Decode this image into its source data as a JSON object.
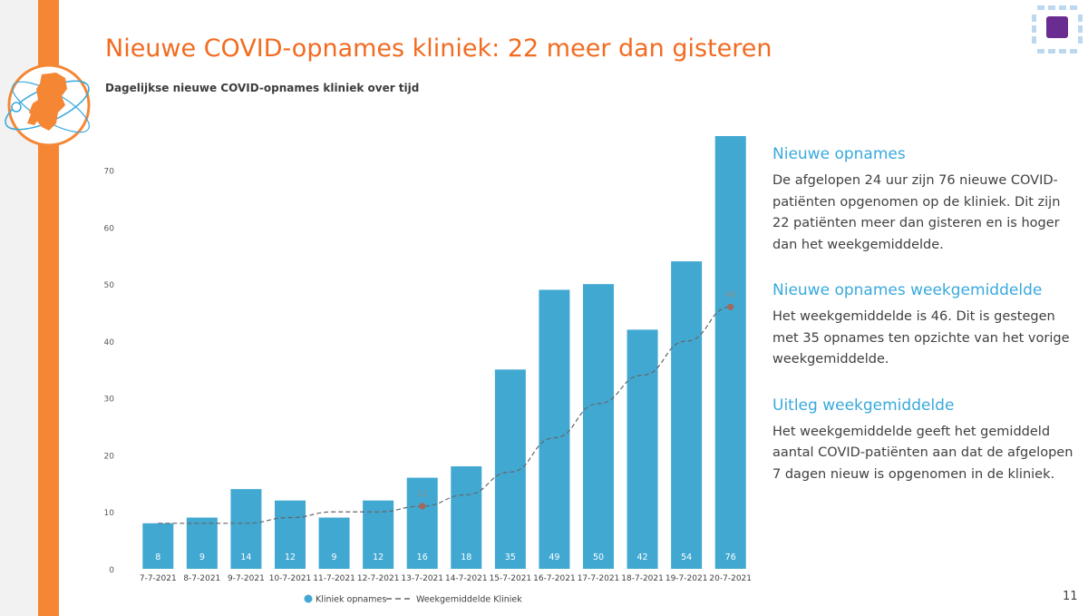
{
  "slide": {
    "title": "Nieuwe COVID-opnames kliniek: 22 meer dan gisteren",
    "subtitle": "Dagelijkse nieuwe COVID-opnames kliniek over tijd",
    "page_number": "11"
  },
  "colors": {
    "accent_orange": "#f58634",
    "title_orange": "#f26b21",
    "bar_blue": "#41a8d2",
    "heading_blue": "#39a9dc",
    "avg_line": "#666666",
    "avg_marker": "#a4695a",
    "logo_purple": "#6b2c91",
    "logo_light_blue": "#bcd8f0"
  },
  "icons": {
    "map_logo": "netherlands-map-orbit-icon",
    "corner_logo": "grid-square-logo-icon"
  },
  "sidebar": [
    {
      "heading": "Nieuwe opnames",
      "body": "De afgelopen 24 uur zijn 76 nieuwe COVID-patiënten opgenomen op de kliniek. Dit zijn 22 patiënten meer dan gisteren en is hoger dan het weekgemiddelde."
    },
    {
      "heading": "Nieuwe opnames weekgemiddelde",
      "body": "Het weekgemiddelde is 46. Dit is gestegen met 35 opnames ten opzichte van het vorige weekgemiddelde."
    },
    {
      "heading": "Uitleg weekgemiddelde",
      "body": "Het weekgemiddelde geeft het gemiddeld aantal COVID-patiënten aan dat de afgelopen 7 dagen nieuw is opgenomen in de kliniek."
    }
  ],
  "chart_data": {
    "type": "bar",
    "categories": [
      "7-7-2021",
      "8-7-2021",
      "9-7-2021",
      "10-7-2021",
      "11-7-2021",
      "12-7-2021",
      "13-7-2021",
      "14-7-2021",
      "15-7-2021",
      "16-7-2021",
      "17-7-2021",
      "18-7-2021",
      "19-7-2021",
      "20-7-2021"
    ],
    "series": [
      {
        "name": "Kliniek opnames",
        "kind": "bar",
        "values": [
          8,
          9,
          14,
          12,
          9,
          12,
          16,
          18,
          35,
          49,
          50,
          42,
          54,
          76
        ]
      },
      {
        "name": "Weekgemiddelde Kliniek",
        "kind": "dashed-line",
        "values": [
          8,
          8,
          8,
          9,
          10,
          10,
          11,
          13,
          17,
          23,
          29,
          34,
          40,
          46
        ]
      }
    ],
    "line_point_labels": [
      {
        "category": "13-7-2021",
        "value": 11
      },
      {
        "category": "20-7-2021",
        "value": 46
      }
    ],
    "y_ticks": [
      0,
      10,
      20,
      30,
      40,
      50,
      60,
      70
    ],
    "ylim": [
      0,
      76
    ],
    "grid": false,
    "legend_position": "bottom"
  }
}
